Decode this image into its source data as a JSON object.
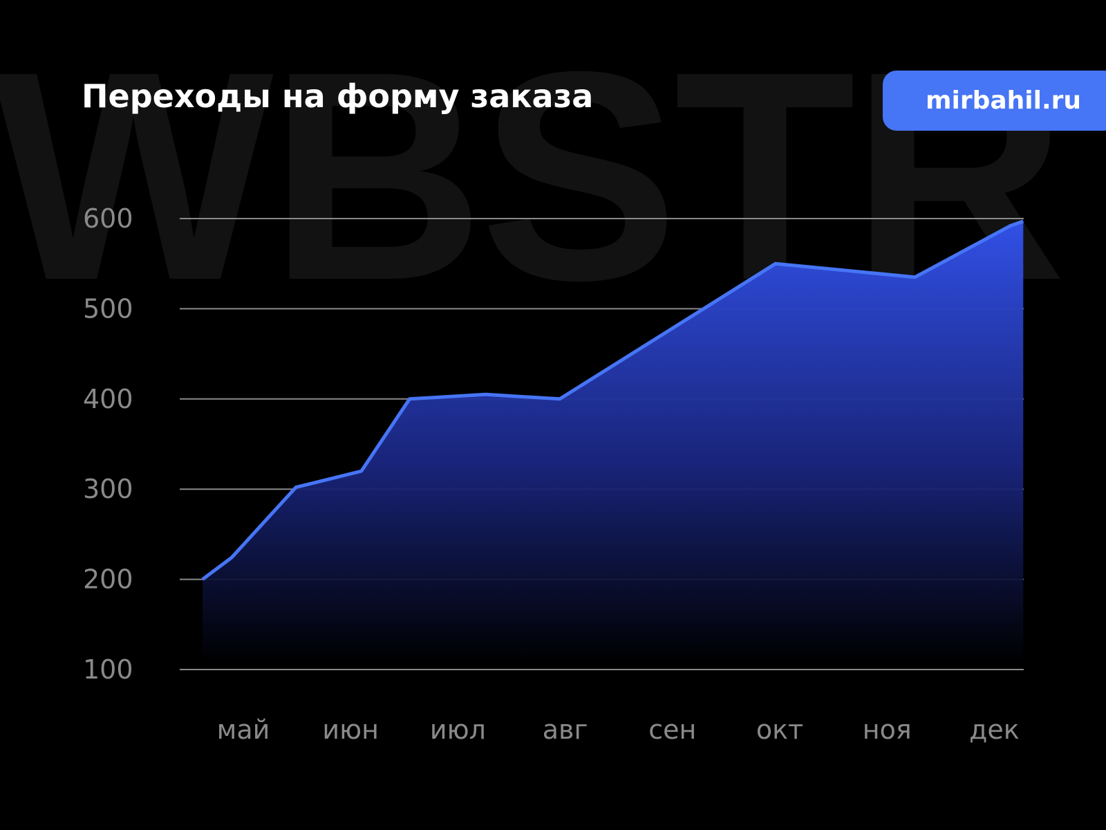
{
  "watermark": "WBSTR",
  "badge": {
    "label": "mirbahil.ru",
    "color": "#4675f5"
  },
  "chart_data": {
    "type": "area",
    "title": "Переходы на форму заказа",
    "xlabel": "",
    "ylabel": "",
    "categories": [
      "май",
      "июн",
      "июл",
      "авг",
      "сен",
      "окт",
      "ноя",
      "дек"
    ],
    "yticks": [
      100,
      200,
      300,
      400,
      500,
      600
    ],
    "ylim": [
      100,
      600
    ],
    "grid": true,
    "line_color": "#4675f5",
    "series": [
      {
        "x": [
          -0.38,
          -0.11,
          0.49,
          1.1,
          1.55,
          2.26,
          2.95,
          4.96,
          6.26,
          7.15,
          7.27
        ],
        "values": [
          200,
          224,
          302,
          320,
          400,
          405,
          400,
          550,
          535,
          592,
          597
        ]
      }
    ]
  }
}
